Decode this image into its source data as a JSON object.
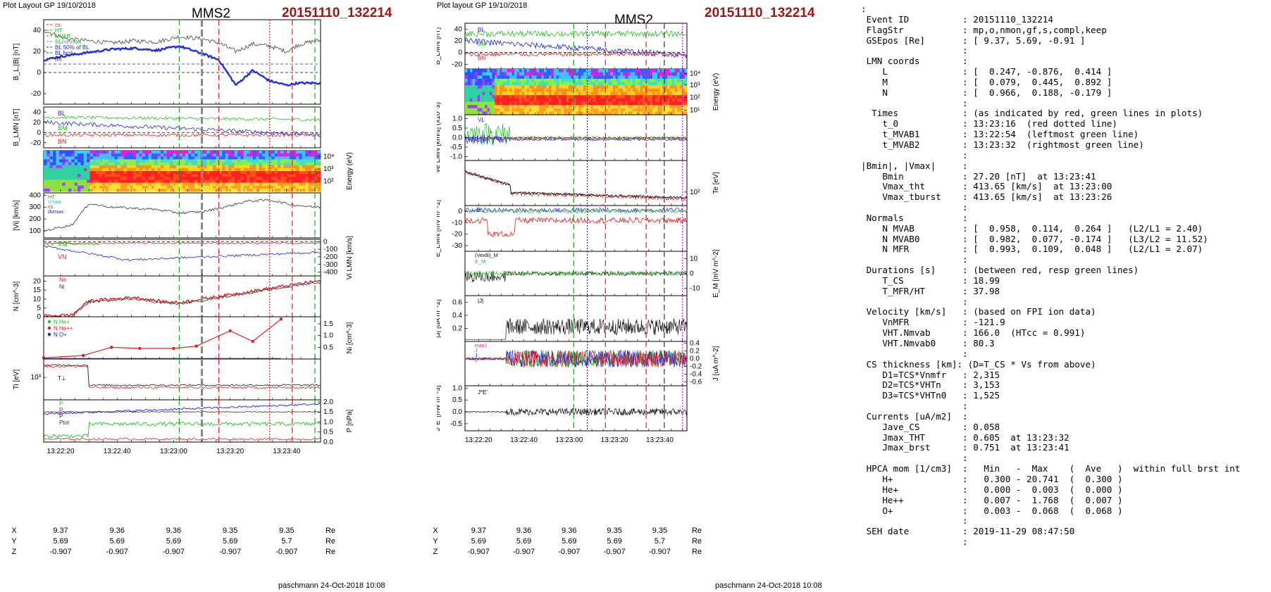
{
  "left": {
    "header_left": "Plot Layout GP 19/10/2018",
    "title": "MMS2",
    "event": "20151110_132214",
    "footer": "paschmann 24-Oct-2018 10:08",
    "time_ticks": [
      "13:22:20",
      "13:22:40",
      "13:23:00",
      "13:23:20",
      "13:23:40"
    ],
    "ephem": {
      "rows": [
        {
          "label": "X",
          "values": [
            "9.37",
            "9.36",
            "9.36",
            "9.35",
            "9.35"
          ],
          "unit": "Re"
        },
        {
          "label": "Y",
          "values": [
            "5.69",
            "5.69",
            "5.69",
            "5.69",
            "5.7"
          ],
          "unit": "Re"
        },
        {
          "label": "Z",
          "values": [
            "-0.907",
            "-0.907",
            "-0.907",
            "-0.907",
            "-0.907"
          ],
          "unit": "Re"
        }
      ]
    },
    "panels": [
      {
        "ylabel": "B_L,|B| [nT]",
        "yticks": [
          "40",
          "20",
          "0",
          "-20"
        ],
        "legend": [
          "cs",
          "HT",
          "MVAB",
          "BLminmax",
          "BL 50% of BL",
          "BL brst",
          "|B|"
        ],
        "legend_colors": [
          "#e02020",
          "#20a020",
          "#20c020",
          "#40c040",
          "#2020e0",
          "#2020e0",
          "#333333"
        ]
      },
      {
        "ylabel": "B_LMN [nT]",
        "yticks": [
          "40",
          "20",
          "0",
          "-20"
        ],
        "labels": [
          "BL",
          "BM",
          "BN"
        ],
        "label_colors": [
          "#2020e0",
          "#20c020",
          "#e02020"
        ]
      },
      {
        "ylabel": "Energy (eV)",
        "yticks_right": [
          "10^4",
          "10^3",
          "10^2"
        ]
      },
      {
        "ylabel": "|Vi| [km/s]",
        "yticks": [
          "400",
          "300",
          "200",
          "100"
        ],
        "legend": [
          "HT",
          "Vmax",
          "cs",
          "dvmax"
        ],
        "legend_colors": [
          "#20a020",
          "#20c0c0",
          "#e02020",
          "#2020e0"
        ]
      },
      {
        "ylabel": "Vi LMN [km/s]",
        "yticks_right": [
          "0",
          "-100",
          "-200",
          "-300",
          "-400"
        ],
        "labels": [
          "VM",
          "VN"
        ],
        "label_colors": [
          "#20c020",
          "#e02020"
        ]
      },
      {
        "ylabel": "N [cm^-3]",
        "yticks": [
          "20",
          "15",
          "10",
          "5",
          "0"
        ],
        "legend": [
          "Ne",
          "Ni"
        ],
        "legend_colors": [
          "#e02020",
          "#333333"
        ]
      },
      {
        "ylabel": "Ni [cm^-3]",
        "yticks_right": [
          "1.5",
          "1.0",
          "0.5"
        ],
        "legend": [
          "N He+",
          "N He++",
          "N O+"
        ],
        "legend_colors": [
          "#20c020",
          "#e02020",
          "#2020e0"
        ]
      },
      {
        "ylabel": "Ti [eV]",
        "yticks": [
          "10^3"
        ],
        "labels": [
          "T⊥"
        ]
      },
      {
        "ylabel": "P [nPa]",
        "yticks_right": [
          "2.0",
          "1.5",
          "1.0",
          "0.5",
          "0.0"
        ],
        "legend": [
          "P",
          "P",
          "P",
          "Ptot"
        ],
        "legend_colors": [
          "#20c020",
          "#e02020",
          "#2020e0",
          "#333333"
        ]
      }
    ]
  },
  "middle": {
    "header_left": "Plot layout GP 19/10/2018",
    "title": "MMS2",
    "event": "20151110_132214",
    "footer": "paschmann 24-Oct-2018 10:08",
    "time_ticks": [
      "13:22:20",
      "13:22:40",
      "13:23:00",
      "13:23:20",
      "13:23:40"
    ],
    "ephem": {
      "rows": [
        {
          "label": "X",
          "values": [
            "9.37",
            "9.36",
            "9.36",
            "9.35",
            "9.35"
          ],
          "unit": "Re"
        },
        {
          "label": "Y",
          "values": [
            "5.69",
            "5.69",
            "5.69",
            "5.69",
            "5.7"
          ],
          "unit": "Re"
        },
        {
          "label": "Z",
          "values": [
            "-0.907",
            "-0.907",
            "-0.907",
            "-0.907",
            "-0.907"
          ],
          "unit": "Re"
        }
      ]
    },
    "panels": [
      {
        "ylabel": "B_LMN [nT]",
        "yticks": [
          "40",
          "20",
          "0",
          "-20"
        ],
        "labels": [
          "BL",
          "BM",
          "BN"
        ]
      },
      {
        "ylabel": "Energy (eV)",
        "yticks_right": [
          "10^4",
          "10^3",
          "10^2",
          "10^1"
        ]
      },
      {
        "ylabel": "Ve LMN [km/s] (x10^3)",
        "yticks": [
          "1.0",
          "0.5",
          "0.0",
          "-0.5",
          "-1.0"
        ],
        "labels": [
          "VL"
        ]
      },
      {
        "ylabel": "Te [eV]",
        "yticks_right": [
          "10^2"
        ]
      },
      {
        "ylabel": "E_LMN [mV m^-1]",
        "yticks": [
          "0",
          "-10",
          "-20",
          "-30"
        ],
        "labels": [
          "E"
        ]
      },
      {
        "ylabel": "E_M [mV m^-2]",
        "yticks_right": [
          "10",
          "0",
          "-10"
        ],
        "legend": [
          "(VexB)_M",
          "E_M"
        ]
      },
      {
        "ylabel": "|J| [uA m^-2]",
        "yticks": [
          "0.6",
          "0.4",
          "0.2"
        ],
        "labels": [
          "|J|"
        ]
      },
      {
        "ylabel": "J [uA m^-2]",
        "yticks_right": [
          "0.4",
          "0.2",
          "0.0",
          "-0.2",
          "-0.4",
          "-0.6"
        ],
        "legend": [
          "maxJ",
          "J",
          "J",
          "J"
        ]
      },
      {
        "ylabel": "J*E' [nW m^-3]",
        "yticks": [
          "1.0",
          "0.5",
          "0.0",
          "-0.5"
        ],
        "labels": [
          "J*E'"
        ]
      }
    ]
  },
  "right_panel": [
    ":",
    " Event ID          : 20151110_132214",
    " FlagStr           : mp,o,nmon,gf,s,compl,keep",
    " GSEpos [Re]       : [ 9.37, 5.69, -0.91 ]",
    "                   :",
    " LMN coords        :",
    "    L              : [  0.247, -0.876,  0.414 ]",
    "    M              : [  0.079,  0.445,  0.892 ]",
    "    N              : [  0.966,  0.188, -0.179 ]",
    "                   :",
    "  Times            : (as indicated by red, green lines in plots)",
    "    t_0            : 13:23:16  (red dotted line)",
    "    t_MVAB1        : 13:22:54  (leftmost green line)",
    "    t_MVAB2        : 13:23:32  (rightmost green line)",
    "                   :",
    "|Bmin|, |Vmax|     :",
    "    Bmin           : 27.20 [nT]  at 13:23:41",
    "    Vmax_tht       : 413.65 [km/s]  at 13:23:00",
    "    Vmax_tburst    : 413.65 [km/s]  at 13:23:26",
    "                   :",
    " Normals           :",
    "    N MVAB         : [  0.958,  0.114,  0.264 ]   (L2/L1 = 2.40)",
    "    N MVAB0        : [  0.982,  0.077, -0.174 ]   (L3/L2 = 11.52)",
    "    N MFR          : [  0.993,  0.109,  0.048 ]   (L2/L1 = 2.07)",
    "                   :",
    " Durations [s]     : (between red, resp green lines)",
    "    T_CS           : 18.99",
    "    T_MFR/HT       : 37.98",
    "                   :",
    " Velocity [km/s]   : (based on FPI ion data)",
    "    VnMFR          : -121.9",
    "    VHT.Nmvab      : 166.0  (HTcc = 0.991)",
    "    VHT.Nmvab0     : 80.3",
    "                   :",
    " CS thickness [km]: (D=T_CS * Vs from above)",
    "    D1=TCS*Vnmfr   : 2,315",
    "    D2=TCS*VHTn    : 3,153",
    "    D3=TCS*VHTn0   : 1,525",
    "                   :",
    " Currents [uA/m2]  :",
    "    Jave_CS        : 0.058",
    "    Jmax_THT       : 0.605  at 13:23:32",
    "    Jmax_brst      : 0.751  at 13:23:41",
    "                   :",
    " HPCA mom [1/cm3]  :   Min   -  Max    (  Ave   )  within full brst int",
    "    H+             :   0.300 - 20.741  (  0.300 )",
    "    He+            :   0.000 -  0.003  (  0.000 )",
    "    He++           :   0.007 -  1.768  (  0.007 )",
    "    O+             :   0.003 -  0.068  (  0.068 )",
    "                   :",
    " SEH date          : 2019-11-29 08:47:50",
    "                   :"
  ],
  "chart_data": [
    {
      "type": "line",
      "title": "MMS2",
      "subtitle": "20151110_132214",
      "x_range": [
        "13:22:14",
        "13:23:52"
      ],
      "xlabel": "",
      "panels": 9,
      "series": [
        {
          "name": "BL brst",
          "panel": 0,
          "x_sec": [
            0,
            8,
            16,
            24,
            32,
            40,
            48,
            56,
            62,
            68,
            74,
            80,
            86,
            90,
            96
          ],
          "values": [
            12,
            16,
            19,
            22,
            23,
            21,
            25,
            18,
            12,
            -12,
            2,
            -8,
            -12,
            -10,
            -10
          ]
        },
        {
          "name": "|B|",
          "panel": 0,
          "x_sec": [
            0,
            8,
            16,
            24,
            32,
            40,
            48,
            56,
            62,
            68,
            74,
            80,
            86,
            90,
            96
          ],
          "values": [
            40,
            32,
            30,
            28,
            30,
            29,
            34,
            32,
            28,
            20,
            27,
            25,
            20,
            26,
            30
          ]
        },
        {
          "name": "|Vi|",
          "panel": 3,
          "x_sec": [
            0,
            10,
            16,
            24,
            32,
            40,
            48,
            56,
            64,
            72,
            80,
            88,
            96
          ],
          "values": [
            100,
            150,
            330,
            300,
            290,
            280,
            250,
            260,
            300,
            350,
            360,
            320,
            300
          ]
        },
        {
          "name": "Ni",
          "panel": 5,
          "x_sec": [
            0,
            10,
            16,
            24,
            32,
            40,
            48,
            56,
            64,
            72,
            80,
            88,
            96
          ],
          "values": [
            0.5,
            1,
            9,
            10,
            11,
            9,
            8,
            10,
            12,
            14,
            16,
            18,
            20
          ]
        },
        {
          "name": "N He++",
          "panel": 6,
          "x_sec": [
            0,
            14,
            24,
            34,
            46,
            54,
            66,
            74,
            84
          ],
          "values": [
            0.05,
            0.15,
            0.5,
            0.45,
            0.45,
            0.55,
            1.2,
            0.75,
            1.7
          ]
        }
      ]
    }
  ]
}
